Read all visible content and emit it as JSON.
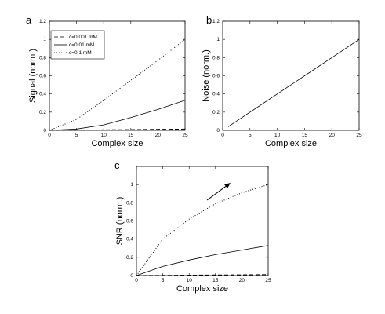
{
  "chart_data": [
    {
      "panel": "a",
      "type": "line",
      "xlabel": "Complex size",
      "ylabel": "Signal (norm.)",
      "xlim": [
        0,
        25
      ],
      "ylim": [
        0,
        1.2
      ],
      "xticks": [
        "0",
        "5",
        "10",
        "15",
        "20",
        "25"
      ],
      "yticks": [
        "0",
        "0.2",
        "0.4",
        "0.6",
        "0.8",
        "1",
        "1.2"
      ],
      "grid": false,
      "legend_position": "top-left",
      "series": [
        {
          "name": "c=0.001 mM",
          "style": "dashed",
          "x": [
            0,
            5,
            10,
            15,
            20,
            25
          ],
          "y": [
            0,
            0.002,
            0.005,
            0.008,
            0.011,
            0.014
          ]
        },
        {
          "name": "c=0.01 mM",
          "style": "solid",
          "x": [
            0,
            5,
            10,
            15,
            20,
            25
          ],
          "y": [
            0,
            0.015,
            0.06,
            0.14,
            0.23,
            0.33
          ]
        },
        {
          "name": "c=0.1 mM",
          "style": "dotted",
          "x": [
            0,
            5,
            10,
            15,
            20,
            25
          ],
          "y": [
            0,
            0.12,
            0.33,
            0.55,
            0.77,
            1.0
          ]
        }
      ]
    },
    {
      "panel": "b",
      "type": "line",
      "xlabel": "Complex size",
      "ylabel": "Noise (norm.)",
      "xlim": [
        0,
        25
      ],
      "ylim": [
        0,
        1.2
      ],
      "xticks": [
        "0",
        "5",
        "10",
        "15",
        "20",
        "25"
      ],
      "yticks": [
        "0",
        "0.2",
        "0.4",
        "0.6",
        "0.8",
        "1",
        "1.2"
      ],
      "grid": false,
      "series": [
        {
          "style": "solid",
          "x": [
            1,
            25
          ],
          "y": [
            0.04,
            1.0
          ]
        }
      ]
    },
    {
      "panel": "c",
      "type": "line",
      "xlabel": "Complex size",
      "ylabel": "SNR (norm.)",
      "xlim": [
        0,
        25
      ],
      "ylim": [
        0,
        1.2
      ],
      "xticks": [
        "0",
        "5",
        "10",
        "15",
        "20",
        "25"
      ],
      "yticks": [
        "0",
        "0.2",
        "0.4",
        "0.6",
        "0.8",
        "1"
      ],
      "grid": false,
      "annotation": "arrow pointing up-right",
      "series": [
        {
          "style": "dashed",
          "x": [
            0,
            5,
            10,
            15,
            20,
            25
          ],
          "y": [
            0,
            0.002,
            0.004,
            0.006,
            0.008,
            0.01
          ]
        },
        {
          "style": "solid",
          "x": [
            0,
            5,
            10,
            15,
            20,
            25
          ],
          "y": [
            0,
            0.1,
            0.17,
            0.23,
            0.28,
            0.33
          ]
        },
        {
          "style": "dotted",
          "x": [
            0,
            5,
            10,
            15,
            20,
            25
          ],
          "y": [
            0,
            0.4,
            0.62,
            0.79,
            0.91,
            1.0
          ]
        }
      ]
    }
  ]
}
